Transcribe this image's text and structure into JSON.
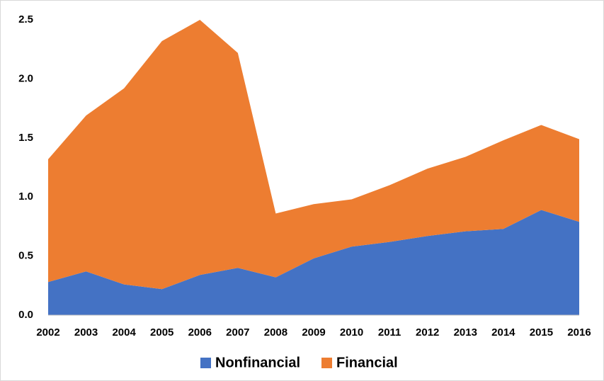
{
  "chart_data": {
    "type": "stacked_area",
    "categories": [
      "2002",
      "2003",
      "2004",
      "2005",
      "2006",
      "2007",
      "2008",
      "2009",
      "2010",
      "2011",
      "2012",
      "2013",
      "2014",
      "2015",
      "2016"
    ],
    "series": [
      {
        "name": "Nonfinancial",
        "color": "#4472c4",
        "values": [
          0.28,
          0.37,
          0.26,
          0.22,
          0.34,
          0.4,
          0.32,
          0.48,
          0.58,
          0.62,
          0.67,
          0.71,
          0.73,
          0.89,
          0.79
        ]
      },
      {
        "name": "Financial",
        "color": "#ed7d31",
        "values": [
          1.04,
          1.32,
          1.66,
          2.1,
          2.16,
          1.82,
          0.54,
          0.46,
          0.4,
          0.48,
          0.57,
          0.63,
          0.75,
          0.72,
          0.7
        ]
      }
    ],
    "ylim": [
      0,
      2.5
    ],
    "yticks": [
      {
        "value": 0,
        "label": "0.0"
      },
      0.5,
      {
        "value": 1,
        "label": "1.0"
      },
      1.5,
      {
        "value": 2,
        "label": "2.0"
      },
      2.5
    ],
    "grid": false,
    "legend": "bottom"
  }
}
